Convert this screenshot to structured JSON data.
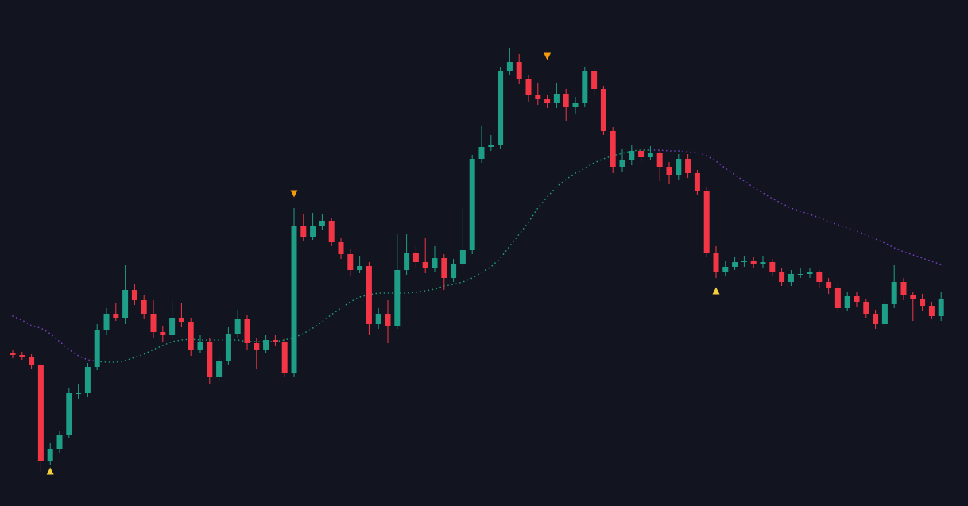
{
  "chart_data": {
    "type": "candlestick",
    "ylim": [
      3,
      640
    ],
    "up_color": "#1e9e86",
    "down_color": "#f23645",
    "open": [
      195,
      193,
      191,
      180,
      60,
      75,
      92,
      145,
      145,
      178,
      225,
      245,
      240,
      275,
      262,
      245,
      222,
      218,
      240,
      235,
      200,
      210,
      165,
      185,
      220,
      238,
      208,
      200,
      212,
      210,
      170,
      355,
      342,
      355,
      362,
      335,
      320,
      300,
      305,
      232,
      245,
      230,
      300,
      322,
      310,
      302,
      315,
      290,
      308,
      325,
      440,
      455,
      458,
      550,
      562,
      540,
      520,
      515,
      510,
      522,
      505,
      510,
      550,
      528,
      475,
      430,
      438,
      450,
      442,
      448,
      430,
      420,
      440,
      422,
      400,
      322,
      298,
      304,
      310,
      312,
      308,
      310,
      298,
      285,
      295,
      295,
      297,
      285,
      278,
      252,
      267,
      260,
      245,
      232,
      257,
      285,
      268,
      263,
      255,
      242
    ],
    "high": [
      199,
      197,
      194,
      183,
      82,
      98,
      152,
      156,
      183,
      232,
      252,
      258,
      306,
      282,
      268,
      262,
      230,
      262,
      258,
      240,
      218,
      214,
      192,
      228,
      250,
      244,
      214,
      218,
      218,
      214,
      378,
      370,
      372,
      370,
      366,
      340,
      326,
      318,
      310,
      252,
      262,
      345,
      345,
      330,
      340,
      330,
      320,
      314,
      378,
      445,
      482,
      470,
      556,
      580,
      572,
      545,
      535,
      520,
      535,
      528,
      518,
      556,
      554,
      532,
      480,
      452,
      458,
      454,
      456,
      452,
      436,
      446,
      446,
      426,
      404,
      330,
      312,
      316,
      318,
      316,
      318,
      314,
      302,
      300,
      302,
      302,
      300,
      290,
      282,
      272,
      272,
      264,
      250,
      262,
      306,
      290,
      272,
      270,
      260,
      272
    ],
    "low": [
      189,
      187,
      176,
      46,
      55,
      70,
      88,
      138,
      140,
      174,
      218,
      236,
      232,
      256,
      239,
      215,
      210,
      214,
      228,
      192,
      196,
      156,
      160,
      180,
      214,
      200,
      175,
      195,
      204,
      165,
      166,
      336,
      338,
      350,
      330,
      314,
      292,
      296,
      218,
      226,
      208,
      226,
      294,
      302,
      296,
      298,
      275,
      285,
      302,
      320,
      435,
      450,
      452,
      545,
      534,
      512,
      508,
      504,
      504,
      488,
      496,
      505,
      520,
      470,
      422,
      424,
      432,
      436,
      438,
      412,
      408,
      414,
      416,
      394,
      316,
      290,
      292,
      300,
      304,
      302,
      302,
      292,
      280,
      280,
      290,
      290,
      278,
      270,
      246,
      248,
      254,
      240,
      226,
      228,
      252,
      262,
      236,
      248,
      238,
      236
    ],
    "close": [
      193,
      191,
      180,
      60,
      75,
      92,
      145,
      145,
      178,
      225,
      245,
      240,
      275,
      262,
      245,
      222,
      218,
      240,
      235,
      200,
      210,
      165,
      185,
      220,
      238,
      208,
      200,
      212,
      210,
      170,
      355,
      342,
      355,
      362,
      335,
      320,
      300,
      305,
      232,
      245,
      230,
      300,
      322,
      310,
      302,
      315,
      290,
      308,
      325,
      440,
      455,
      458,
      550,
      562,
      540,
      520,
      515,
      510,
      522,
      505,
      510,
      550,
      528,
      475,
      430,
      438,
      450,
      442,
      448,
      430,
      420,
      440,
      422,
      400,
      322,
      298,
      304,
      310,
      312,
      308,
      310,
      298,
      285,
      295,
      295,
      297,
      285,
      278,
      252,
      267,
      260,
      245,
      232,
      257,
      285,
      268,
      263,
      255,
      242,
      264
    ],
    "series": [
      {
        "color": "#7a3fc8",
        "values": [
          242,
          237,
          230,
          227,
          220,
          210,
          200,
          192,
          187,
          185,
          null,
          null,
          null,
          null,
          null,
          null,
          null,
          null,
          null,
          null,
          null,
          null,
          null,
          null,
          null,
          null,
          null,
          null,
          null,
          null,
          null,
          null,
          null,
          null,
          null,
          null,
          null,
          null,
          null,
          null,
          null,
          null,
          null,
          null,
          null,
          null,
          null,
          null,
          null,
          null,
          null,
          null,
          null,
          null,
          null,
          null,
          null,
          null,
          null,
          null,
          null,
          null,
          null,
          null,
          null,
          null,
          null,
          null,
          451,
          451,
          450,
          450,
          449,
          448,
          444,
          437,
          428,
          420,
          412,
          404,
          397,
          390,
          384,
          378,
          374,
          370,
          366,
          361,
          357,
          353,
          349,
          344,
          339,
          334,
          328,
          323,
          319,
          315,
          311,
          307
        ]
      },
      {
        "color": "#1f9e7a",
        "values": [
          null,
          null,
          null,
          null,
          null,
          null,
          null,
          null,
          null,
          185,
          184,
          184,
          186,
          190,
          194,
          200,
          205,
          210,
          212,
          213,
          212,
          212,
          212,
          212,
          212,
          210,
          210,
          210,
          210,
          212,
          215,
          220,
          227,
          235,
          244,
          252,
          260,
          266,
          269,
          271,
          271,
          271,
          271,
          272,
          274,
          276,
          280,
          282,
          285,
          290,
          297,
          304,
          315,
          330,
          345,
          360,
          378,
          392,
          405,
          414,
          422,
          428,
          435,
          440,
          444,
          447,
          450,
          451,
          451,
          null,
          null,
          null,
          null,
          null,
          null,
          null,
          null,
          null,
          null,
          null,
          null,
          null,
          null,
          null,
          null,
          null,
          null,
          null,
          null,
          null,
          null,
          null,
          null,
          null,
          null,
          null,
          null,
          null,
          null,
          null
        ]
      }
    ],
    "markers": [
      {
        "direction": "up",
        "color": "#f5cf3c",
        "values": [
          null,
          null,
          null,
          null,
          47,
          null,
          null,
          null,
          null,
          null,
          null,
          null,
          null,
          null,
          null,
          null,
          null,
          null,
          null,
          null,
          null,
          null,
          null,
          null,
          null,
          null,
          null,
          null,
          null,
          null,
          null,
          null,
          null,
          null,
          null,
          null,
          null,
          null,
          null,
          null,
          null,
          null,
          null,
          null,
          null,
          null,
          null,
          null,
          null,
          null,
          null,
          null,
          null,
          null,
          null,
          null,
          null,
          null,
          null,
          null,
          null,
          null,
          null,
          null,
          null,
          null,
          null,
          null,
          null,
          null,
          null,
          null,
          null,
          null,
          null,
          274,
          null,
          null,
          null,
          null,
          null,
          null,
          null,
          null,
          null,
          null,
          null,
          null,
          null,
          null,
          null,
          null,
          null,
          null,
          null,
          null,
          null,
          null,
          null,
          null
        ]
      },
      {
        "direction": "down",
        "color": "#f59a0c",
        "values": [
          null,
          null,
          null,
          null,
          null,
          null,
          null,
          null,
          null,
          null,
          null,
          null,
          null,
          null,
          null,
          null,
          null,
          null,
          null,
          null,
          null,
          null,
          null,
          null,
          null,
          null,
          null,
          null,
          null,
          null,
          396,
          null,
          null,
          null,
          null,
          null,
          null,
          null,
          null,
          null,
          null,
          null,
          null,
          null,
          null,
          null,
          null,
          null,
          null,
          null,
          null,
          null,
          null,
          null,
          null,
          null,
          null,
          569,
          null,
          null,
          null,
          null,
          null,
          null,
          null,
          null,
          null,
          null,
          null,
          null,
          null,
          null,
          null,
          null,
          null,
          null,
          null,
          null,
          null,
          null,
          null,
          null,
          null,
          null,
          null,
          null,
          null,
          null,
          null,
          null,
          null,
          null,
          null,
          null,
          null,
          null,
          null,
          null,
          null,
          null
        ]
      }
    ]
  }
}
